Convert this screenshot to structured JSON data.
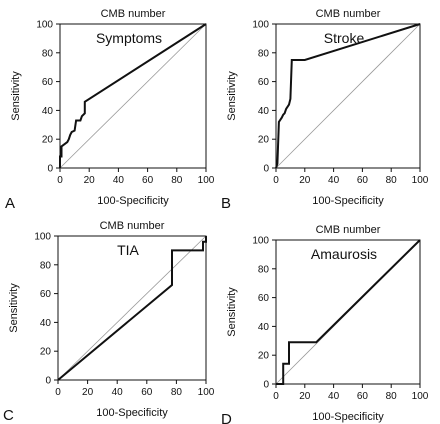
{
  "chart_data": [
    {
      "type": "line",
      "panel": "A",
      "title": "CMB number",
      "label": "Symptoms",
      "xlabel": "100-Specificity",
      "ylabel": "Sensitivity",
      "xlim": [
        0,
        100
      ],
      "ylim": [
        0,
        100
      ],
      "xticks": [
        0,
        20,
        40,
        60,
        80,
        100
      ],
      "yticks": [
        0,
        20,
        40,
        60,
        80,
        100
      ],
      "grid": false,
      "reference_line": true,
      "series": [
        {
          "x": [
            0,
            0,
            1,
            1,
            5,
            6,
            7,
            8,
            10,
            11,
            14,
            15,
            17,
            17,
            100
          ],
          "y": [
            0,
            8,
            8,
            15,
            18,
            20,
            23,
            25,
            26,
            33,
            33,
            36,
            38,
            46,
            100
          ]
        }
      ]
    },
    {
      "type": "line",
      "panel": "B",
      "title": "CMB number",
      "label": "Stroke",
      "xlabel": "100-Specificity",
      "ylabel": "Sensitivity",
      "xlim": [
        0,
        100
      ],
      "ylim": [
        0,
        100
      ],
      "xticks": [
        0,
        20,
        40,
        60,
        80,
        100
      ],
      "yticks": [
        0,
        20,
        40,
        60,
        80,
        100
      ],
      "grid": false,
      "reference_line": true,
      "series": [
        {
          "x": [
            0,
            1,
            2,
            4,
            5,
            6,
            7,
            9,
            10,
            11,
            12,
            20,
            100
          ],
          "y": [
            0,
            3,
            32,
            35,
            37,
            38,
            41,
            44,
            48,
            75,
            75,
            75,
            100
          ]
        }
      ]
    },
    {
      "type": "line",
      "panel": "C",
      "title": "CMB number",
      "label": "TIA",
      "xlabel": "100-Specificity",
      "ylabel": "Sensitivity",
      "xlim": [
        0,
        100
      ],
      "ylim": [
        0,
        100
      ],
      "xticks": [
        0,
        20,
        40,
        60,
        80,
        100
      ],
      "yticks": [
        0,
        20,
        40,
        60,
        80,
        100
      ],
      "grid": false,
      "reference_line": true,
      "series": [
        {
          "x": [
            0,
            77,
            77,
            98,
            98,
            100,
            100
          ],
          "y": [
            0,
            66,
            90,
            90,
            96,
            96,
            100
          ]
        }
      ]
    },
    {
      "type": "line",
      "panel": "D",
      "title": "CMB number",
      "label": "Amaurosis",
      "xlabel": "100-Specificity",
      "ylabel": "Sensitivity",
      "xlim": [
        0,
        100
      ],
      "ylim": [
        0,
        100
      ],
      "xticks": [
        0,
        20,
        40,
        60,
        80,
        100
      ],
      "yticks": [
        0,
        20,
        40,
        60,
        80,
        100
      ],
      "grid": false,
      "reference_line": true,
      "series": [
        {
          "x": [
            0,
            5,
            5,
            9,
            9,
            28,
            100
          ],
          "y": [
            0,
            0,
            14,
            14,
            29,
            29,
            100
          ]
        }
      ]
    }
  ]
}
